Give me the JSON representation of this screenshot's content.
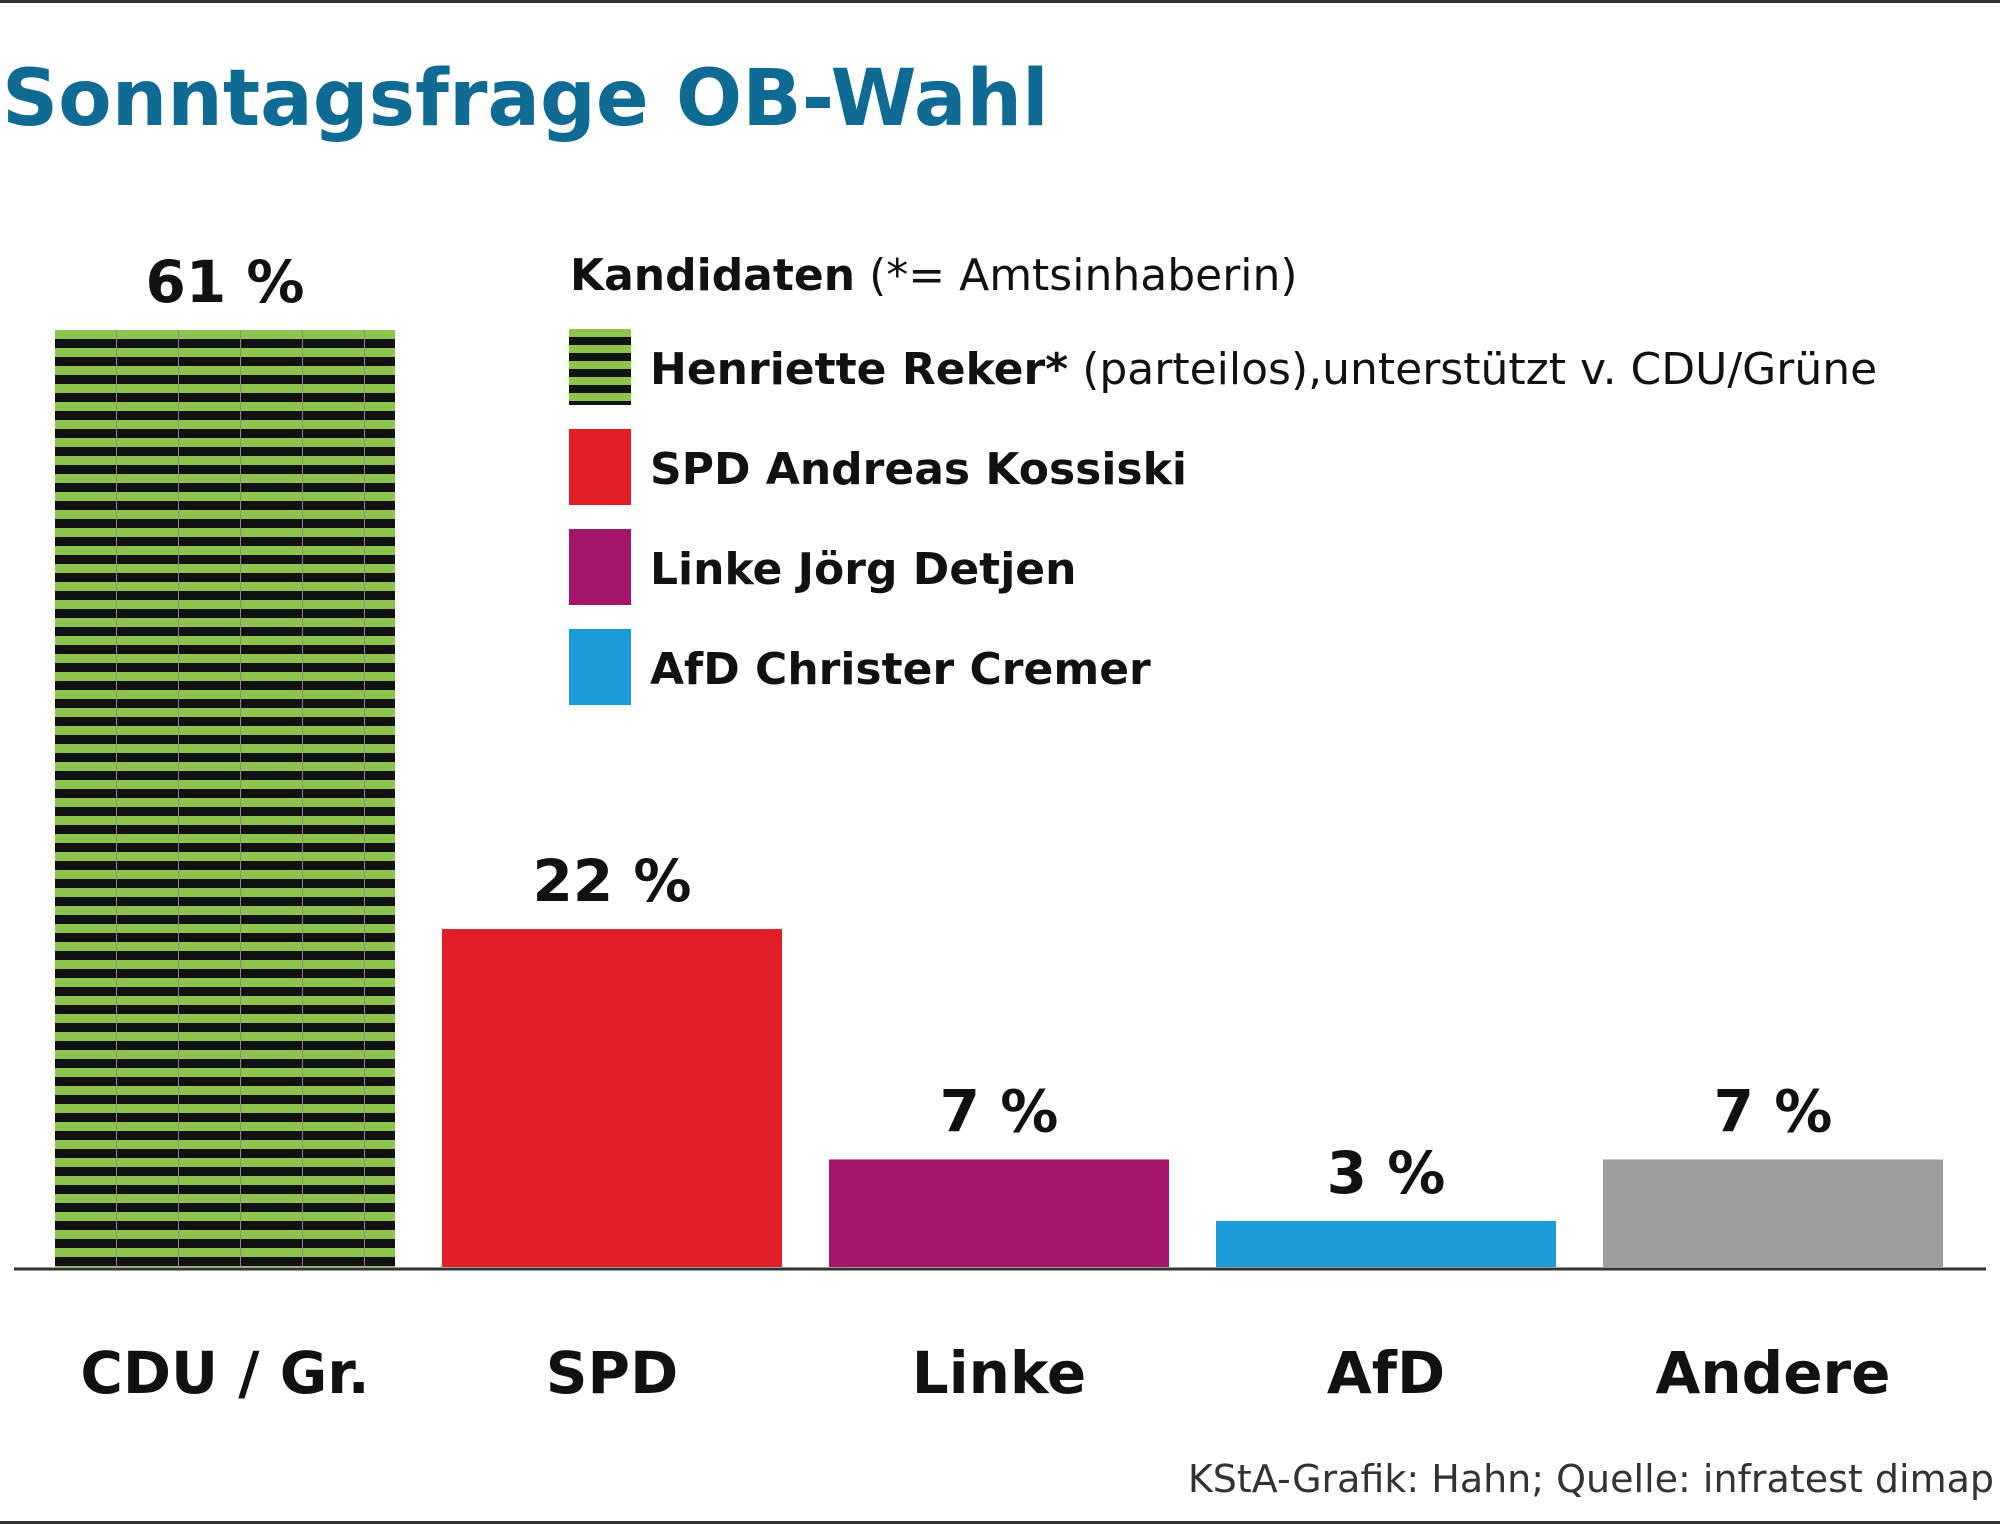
{
  "chart_data": {
    "type": "bar",
    "title": "Sonntagsfrage OB-Wahl",
    "categories": [
      "CDU / Gr.",
      "SPD",
      "Linke",
      "AfD",
      "Andere"
    ],
    "values": [
      61,
      22,
      7,
      3,
      7
    ],
    "value_labels": [
      "61 %",
      "22 %",
      "7 %",
      "3 %",
      "7 %"
    ],
    "unit": "%",
    "ylim": [
      0,
      61
    ],
    "grid": false,
    "legend": {
      "placement": "top-right",
      "heading_bold": "Kandidaten",
      "heading_normal": "(*= Amtsinhaberin)",
      "entries": [
        {
          "bold": "Henriette Reker*",
          "normal": "(parteilos),unterstützt v. CDU/Grüne",
          "pattern": "striped",
          "color": "#8dc44d"
        },
        {
          "bold": "SPD Andreas Kossiski",
          "normal": "",
          "pattern": "solid",
          "color": "#e21e26"
        },
        {
          "bold": "Linke Jörg Detjen",
          "normal": "",
          "pattern": "solid",
          "color": "#a3146a"
        },
        {
          "bold": "AfD Christer Cremer",
          "normal": "",
          "pattern": "solid",
          "color": "#1b9bd7"
        }
      ]
    },
    "colors": [
      "#8dc44d",
      "#e21e26",
      "#a3146a",
      "#1b9bd7",
      "#9d9d9d"
    ],
    "patterns": [
      "striped",
      "solid",
      "solid",
      "solid",
      "solid"
    ],
    "source": "KStA-Grafik: Hahn; Quelle: infratest dimap"
  },
  "style": {
    "title_color": "#0f6b94",
    "text_color": "#111111",
    "stripe_dark": "#111111",
    "source_color": "#333333"
  }
}
